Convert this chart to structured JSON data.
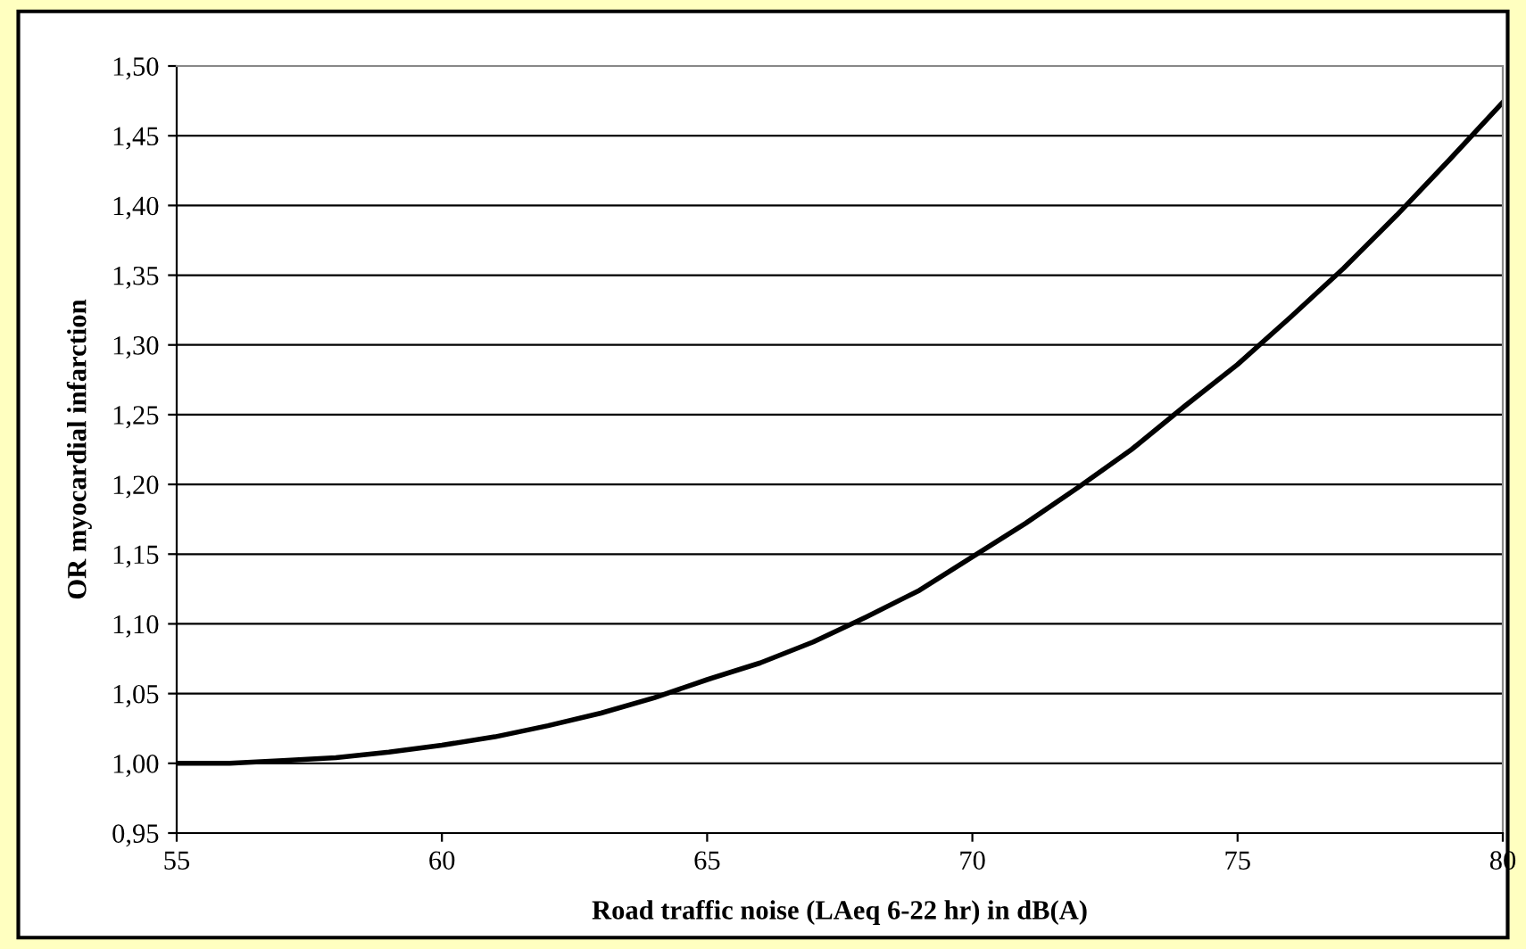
{
  "chart_data": {
    "type": "line",
    "xlabel": "Road traffic noise (LAeq 6-22 hr) in dB(A)",
    "ylabel": "OR myocardial infarction",
    "x": [
      55,
      56,
      57,
      58,
      59,
      60,
      61,
      62,
      63,
      64,
      65,
      66,
      67,
      68,
      69,
      70,
      71,
      72,
      73,
      74,
      75,
      76,
      77,
      78,
      79,
      80
    ],
    "series": [
      {
        "color": "#000000",
        "values": [
          1.0,
          1.0,
          1.002,
          1.004,
          1.008,
          1.013,
          1.019,
          1.027,
          1.036,
          1.047,
          1.06,
          1.072,
          1.087,
          1.105,
          1.124,
          1.148,
          1.172,
          1.198,
          1.225,
          1.256,
          1.286,
          1.32,
          1.355,
          1.393,
          1.433,
          1.474
        ]
      }
    ],
    "xlim": [
      55,
      80
    ],
    "xticks": [
      55,
      60,
      65,
      70,
      75,
      80
    ],
    "ylim": [
      0.95,
      1.5
    ],
    "yticks": [
      {
        "value": 0.95,
        "label": "0,95"
      },
      {
        "value": 1.0,
        "label": "1,00"
      },
      {
        "value": 1.05,
        "label": "1,05"
      },
      {
        "value": 1.1,
        "label": "1,10"
      },
      {
        "value": 1.15,
        "label": "1,15"
      },
      {
        "value": 1.2,
        "label": "1,20"
      },
      {
        "value": 1.25,
        "label": "1,25"
      },
      {
        "value": 1.3,
        "label": "1,30"
      },
      {
        "value": 1.35,
        "label": "1,35"
      },
      {
        "value": 1.4,
        "label": "1,40"
      },
      {
        "value": 1.45,
        "label": "1,45"
      },
      {
        "value": 1.5,
        "label": "1,50"
      }
    ],
    "grid": "y",
    "marker": "none",
    "line_style": "solid",
    "legend": false
  }
}
